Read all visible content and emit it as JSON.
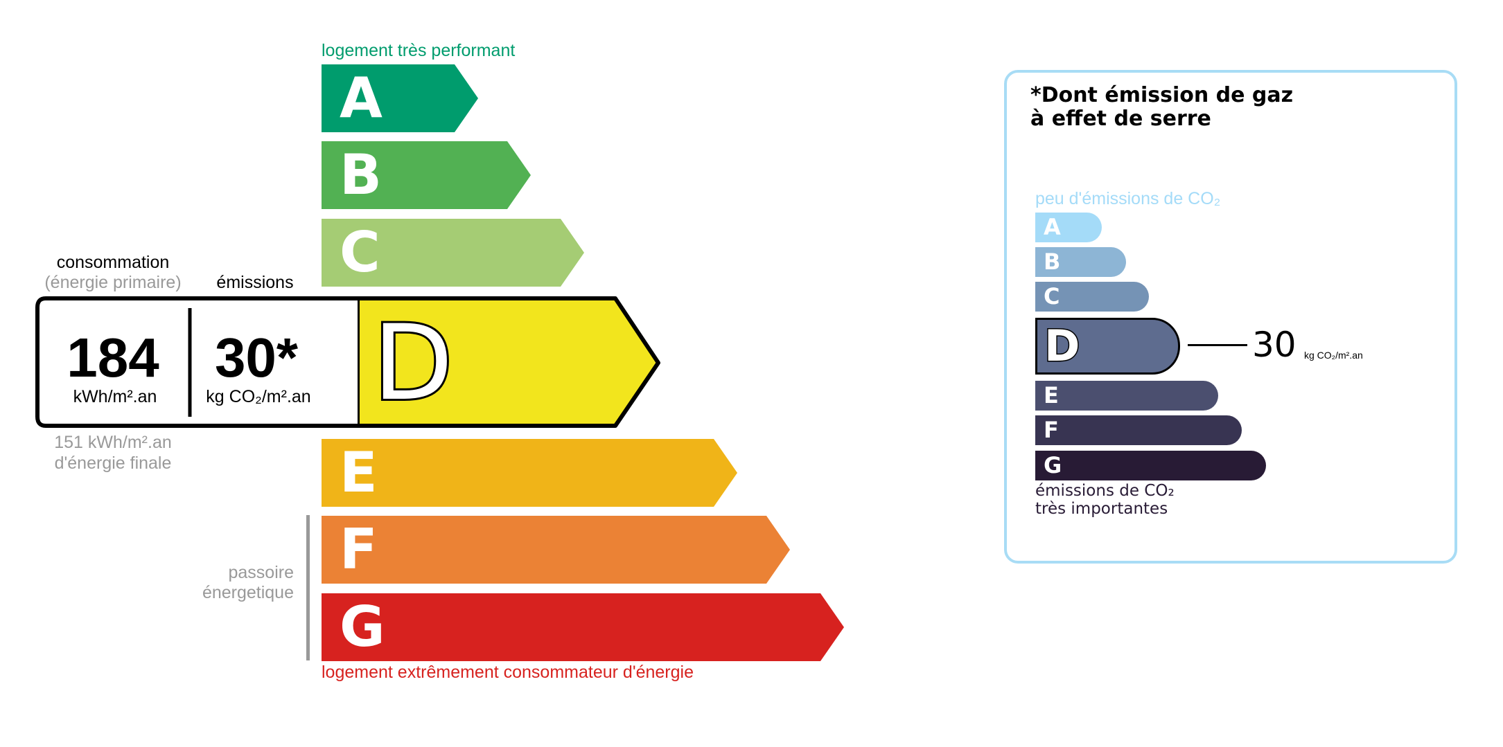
{
  "energy": {
    "top_label": "logement très performant",
    "bottom_label": "logement extrêmement consommateur d'énergie",
    "classes": [
      {
        "letter": "A",
        "color": "#009c6d"
      },
      {
        "letter": "B",
        "color": "#52b153"
      },
      {
        "letter": "C",
        "color": "#a5cc74"
      },
      {
        "letter": "D",
        "color": "#f2e51d"
      },
      {
        "letter": "E",
        "color": "#f0b418"
      },
      {
        "letter": "F",
        "color": "#eb8235"
      },
      {
        "letter": "G",
        "color": "#d7221f"
      }
    ],
    "current_class": "D",
    "consumption_label": "consommation",
    "consumption_sublabel": "(énergie primaire)",
    "emissions_label": "émissions",
    "consumption_value": "184",
    "consumption_unit": "kWh/m².an",
    "emissions_value": "30*",
    "emissions_unit": "kg CO₂/m².an",
    "final_energy_value": "151 kWh/m².an",
    "final_energy_label": "d'énergie finale",
    "passoire_line1": "passoire",
    "passoire_line2": "énergetique"
  },
  "ges": {
    "title_line1": "*Dont émission de gaz",
    "title_line2": "à effet de serre",
    "top_label": "peu d'émissions de CO₂",
    "bottom_line1": "émissions de CO₂",
    "bottom_line2": "très importantes",
    "classes": [
      {
        "letter": "A",
        "color": "#a4dbf8"
      },
      {
        "letter": "B",
        "color": "#8db5d5"
      },
      {
        "letter": "C",
        "color": "#7593b5"
      },
      {
        "letter": "D",
        "color": "#5e6c8f"
      },
      {
        "letter": "E",
        "color": "#4b4f6f"
      },
      {
        "letter": "F",
        "color": "#383452"
      },
      {
        "letter": "G",
        "color": "#281b35"
      }
    ],
    "current_class": "D",
    "value": "30",
    "unit": "kg CO₂/m².an",
    "border_color": "#a8dcf5"
  }
}
